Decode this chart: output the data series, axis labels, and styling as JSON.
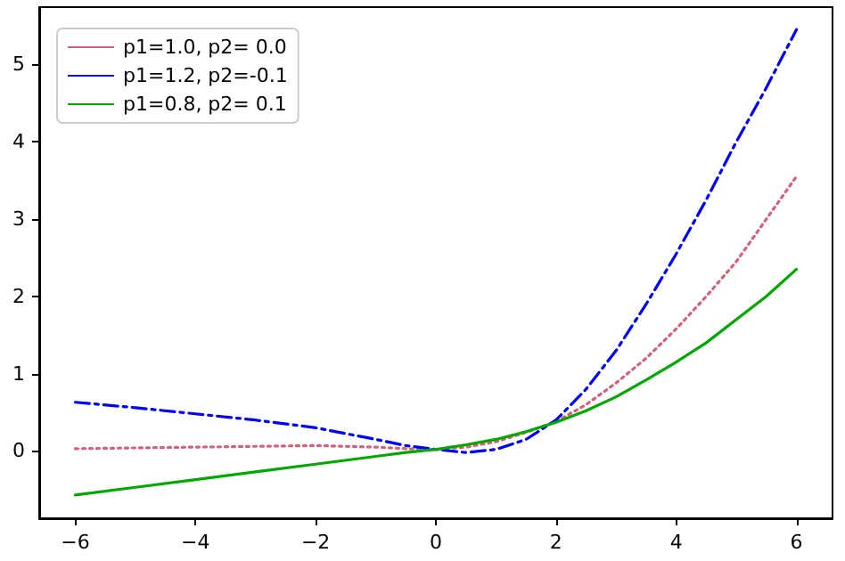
{
  "chart_data": {
    "type": "line",
    "x": [
      -6,
      -5,
      -4,
      -3,
      -2,
      -1,
      -0.5,
      0,
      0.5,
      1,
      1.5,
      2,
      2.5,
      3,
      3.5,
      4,
      4.5,
      5,
      5.5,
      6
    ],
    "series": [
      {
        "name": "p1=1.0, p2= 0.0",
        "color": "#d6607a",
        "line_style": "dotted",
        "values": [
          0.03,
          0.04,
          0.05,
          0.06,
          0.07,
          0.05,
          0.03,
          0.02,
          0.05,
          0.12,
          0.24,
          0.38,
          0.6,
          0.88,
          1.2,
          1.58,
          2.0,
          2.45,
          3.0,
          3.55
        ]
      },
      {
        "name": "p1=1.2, p2=-0.1",
        "color": "#0000ff",
        "line_style": "dashdot",
        "values": [
          0.63,
          0.56,
          0.48,
          0.4,
          0.3,
          0.15,
          0.07,
          0.02,
          -0.02,
          0.02,
          0.15,
          0.4,
          0.8,
          1.3,
          1.9,
          2.55,
          3.25,
          4.0,
          4.7,
          5.45
        ]
      },
      {
        "name": "p1=0.8, p2= 0.1",
        "color": "#00aa00",
        "line_style": "solid",
        "values": [
          -0.57,
          -0.47,
          -0.37,
          -0.27,
          -0.17,
          -0.07,
          -0.02,
          0.02,
          0.08,
          0.15,
          0.25,
          0.37,
          0.52,
          0.7,
          0.92,
          1.15,
          1.4,
          1.7,
          2.0,
          2.35
        ]
      }
    ],
    "xlim": [
      -6.6,
      6.6
    ],
    "xticks": [
      {
        "value": -6,
        "label": "−6"
      },
      {
        "value": -4,
        "label": "−4"
      },
      {
        "value": -2,
        "label": "−2"
      },
      0,
      2,
      4,
      6
    ],
    "ylim": [
      -0.87,
      5.74
    ],
    "yticks": [
      0,
      1,
      2,
      3,
      4,
      5
    ],
    "grid": false,
    "legend": "top left",
    "marker": "none"
  }
}
